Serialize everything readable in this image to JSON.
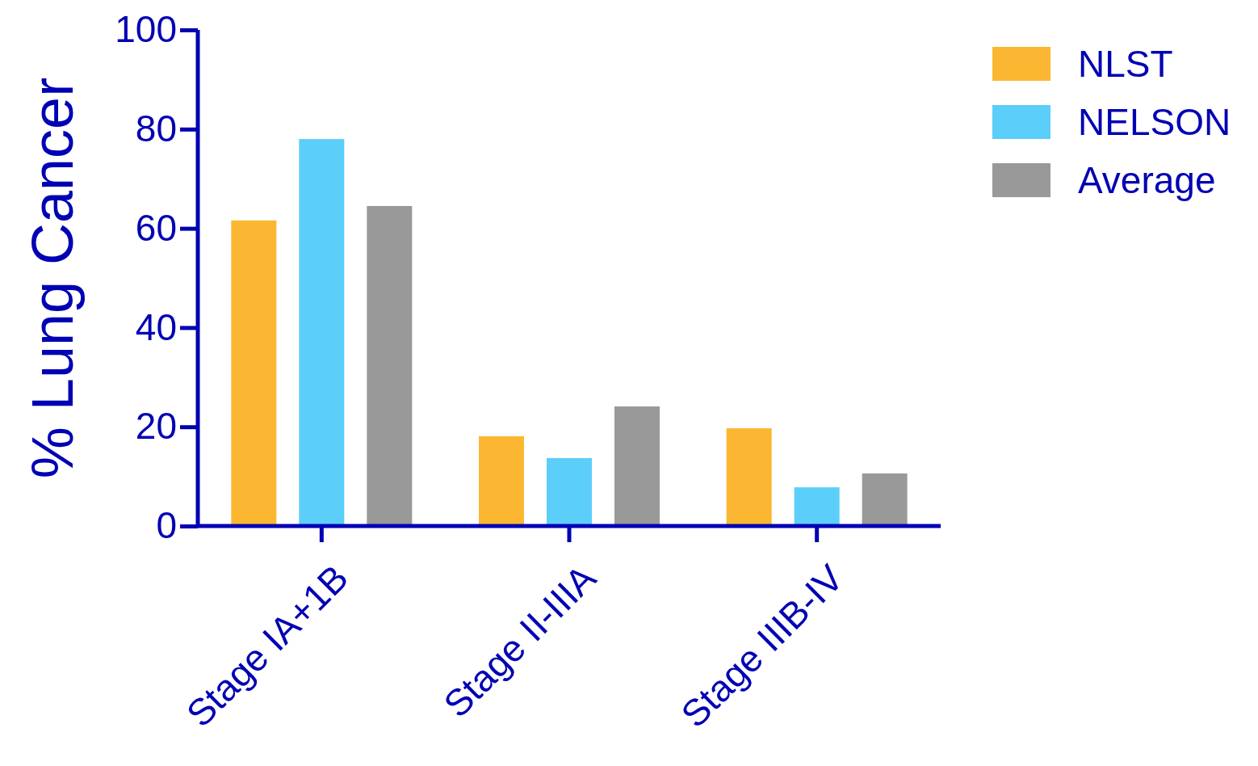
{
  "chart_data": {
    "type": "bar",
    "ylabel": "% Lung Cancer",
    "categories": [
      "Stage IA+1B",
      "Stage II-IIIA",
      "Stage IIIB-IV"
    ],
    "series": [
      {
        "name": "NLST",
        "color": "#fbb731",
        "values": [
          61.6,
          18.1,
          19.7
        ]
      },
      {
        "name": "NELSON",
        "color": "#5bcefa",
        "values": [
          78.0,
          13.7,
          7.8
        ]
      },
      {
        "name": "Average",
        "color": "#999999",
        "values": [
          64.5,
          24.1,
          10.6
        ]
      }
    ],
    "ylim": [
      0,
      100
    ],
    "yticks": [
      0,
      20,
      40,
      60,
      80,
      100
    ],
    "grid": false,
    "legend": "top right"
  }
}
